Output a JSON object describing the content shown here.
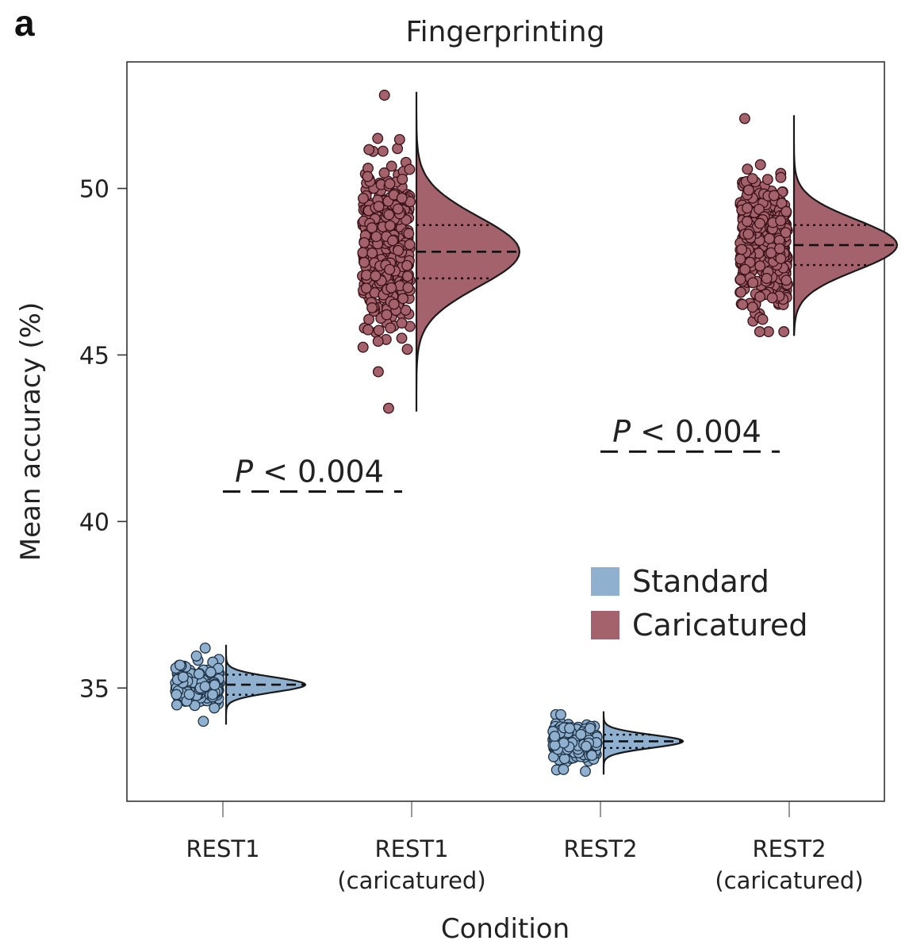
{
  "panel_letter": "a",
  "chart_data": {
    "type": "raincloud",
    "title": "Fingerprinting",
    "xlabel": "Condition",
    "ylabel": "Mean accuracy (%)",
    "ylim": [
      31.6,
      53.8
    ],
    "yticks": [
      35,
      40,
      45,
      50
    ],
    "categories": [
      {
        "line1": "REST1",
        "line2": ""
      },
      {
        "line1": "REST1",
        "line2": "(caricatured)"
      },
      {
        "line1": "REST2",
        "line2": ""
      },
      {
        "line1": "REST2",
        "line2": "(caricatured)"
      }
    ],
    "series": [
      {
        "name": "Standard",
        "color": "#8fb0cf",
        "groups": [
          {
            "category_index": 0,
            "median": 35.1,
            "q1": 34.8,
            "q3": 35.4,
            "min": 34.0,
            "max": 36.2,
            "sd": 0.25
          },
          {
            "category_index": 2,
            "median": 33.4,
            "q1": 33.2,
            "q3": 33.6,
            "min": 32.5,
            "max": 34.2,
            "sd": 0.22
          }
        ]
      },
      {
        "name": "Caricatured",
        "color": "#a3626c",
        "groups": [
          {
            "category_index": 1,
            "median": 48.1,
            "q1": 47.3,
            "q3": 48.9,
            "min": 43.4,
            "max": 52.8,
            "sd": 1.1
          },
          {
            "category_index": 3,
            "median": 48.3,
            "q1": 47.7,
            "q3": 48.9,
            "min": 45.7,
            "max": 52.1,
            "sd": 0.8
          }
        ]
      }
    ],
    "annotations": [
      {
        "text_italic": "P",
        "text_rest": " < 0.004",
        "y": 40.9,
        "from_category": 0,
        "to_category": 1
      },
      {
        "text_italic": "P",
        "text_rest": " < 0.004",
        "y": 42.1,
        "from_category": 2,
        "to_category": 3
      }
    ],
    "legend": {
      "placement": "lower-right",
      "entries": [
        "Standard",
        "Caricatured"
      ]
    }
  }
}
